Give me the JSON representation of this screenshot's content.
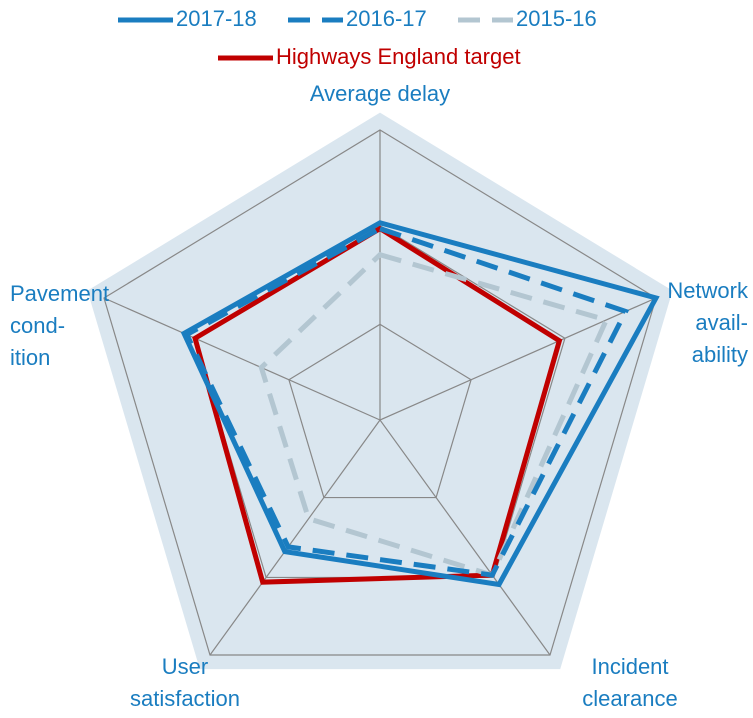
{
  "chart_data": {
    "type": "radar",
    "categories": [
      [
        "Average delay"
      ],
      [
        "Network",
        "avail-",
        "ability"
      ],
      [
        "Incident",
        "clearance"
      ],
      [
        "User",
        "satisfaction"
      ],
      [
        "Pavement",
        "cond-",
        "ition"
      ]
    ],
    "series": [
      {
        "name": "2017-18",
        "color": "#1a7dc0",
        "dash": "solid",
        "values": [
          68,
          100,
          70,
          56,
          71
        ]
      },
      {
        "name": "2016-17",
        "color": "#1a7dc0",
        "dash": "dashed",
        "values": [
          66,
          89,
          66,
          54,
          70
        ]
      },
      {
        "name": "2015-16",
        "color": "#b3c6d1",
        "dash": "dashed",
        "values": [
          57,
          82,
          66,
          42,
          43
        ]
      },
      {
        "name": "Highways England target",
        "color": "#c00000",
        "dash": "solid",
        "values": [
          66,
          65,
          66,
          69,
          67
        ]
      }
    ],
    "ylim": [
      0,
      100
    ],
    "yticks": [
      0,
      33,
      67,
      100
    ],
    "grid": true,
    "legend": "top"
  }
}
